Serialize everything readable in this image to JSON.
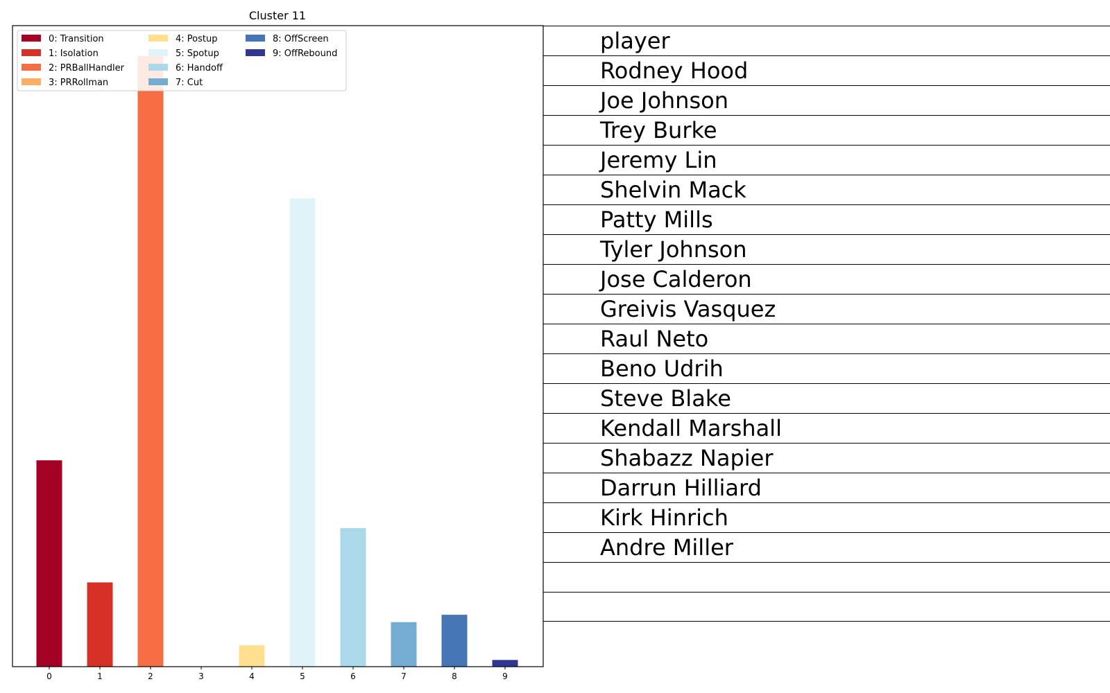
{
  "chart_data": {
    "type": "bar",
    "title": "Cluster 11",
    "categories": [
      "0",
      "1",
      "2",
      "3",
      "4",
      "5",
      "6",
      "7",
      "8",
      "9"
    ],
    "values": [
      0.338,
      0.138,
      1.0,
      0.0,
      0.035,
      0.767,
      0.227,
      0.073,
      0.085,
      0.011
    ],
    "ylim": [
      0,
      1.05
    ],
    "xlabel": "",
    "ylabel": "",
    "colors": [
      "#a50026",
      "#d73027",
      "#f46d43",
      "#fdae61",
      "#fee090",
      "#e0f3f8",
      "#abd9e9",
      "#74add1",
      "#4575b4",
      "#313695"
    ],
    "legend": {
      "position": "upper-left",
      "entries": [
        "0: Transition",
        "1: Isolation",
        "2: PRBallHandler",
        "3: PRRollman",
        "4: Postup",
        "5: Spotup",
        "6: Handoff",
        "7: Cut",
        "8: OffScreen",
        "9: OffRebound"
      ]
    }
  },
  "table": {
    "header": "player",
    "players": [
      "Rodney Hood",
      "Joe Johnson",
      "Trey Burke",
      "Jeremy Lin",
      "Shelvin Mack",
      "Patty Mills",
      "Tyler Johnson",
      "Jose Calderon",
      "Greivis Vasquez",
      "Raul Neto",
      "Beno Udrih",
      "Steve Blake",
      "Kendall Marshall",
      "Shabazz Napier",
      "Darrun Hilliard",
      "Kirk Hinrich",
      "Andre Miller",
      "",
      "",
      ""
    ]
  }
}
